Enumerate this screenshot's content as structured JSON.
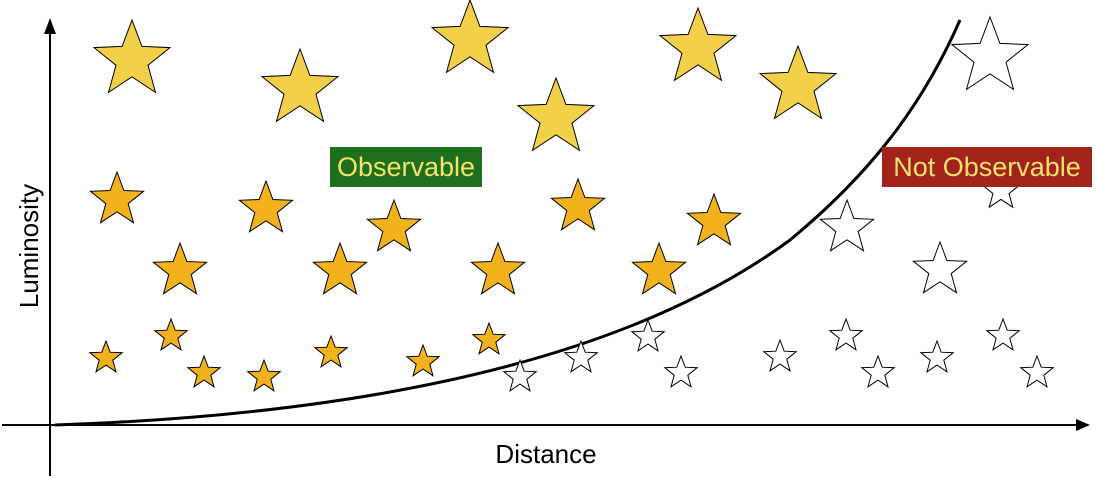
{
  "axes": {
    "x_label": "Distance",
    "y_label": "Luminosity"
  },
  "labels": {
    "observable": "Observable",
    "not_observable": "Not Observable"
  },
  "colors": {
    "observable_bg": "#1e6f1e",
    "observable_text": "#f3e36a",
    "not_observable_bg": "#a3221c",
    "not_observable_text": "#f3e36a",
    "bright_star_fill": "#f2d04a",
    "medium_star_fill": "#f2b21e",
    "dim_star_fill": "#f2b21e",
    "unobserved_star_fill": "#ffffff",
    "star_outline": "#000000",
    "curve": "#000000"
  },
  "legend_note": {
    "observable_position": "left of curve",
    "not_observable_position": "right of curve"
  }
}
